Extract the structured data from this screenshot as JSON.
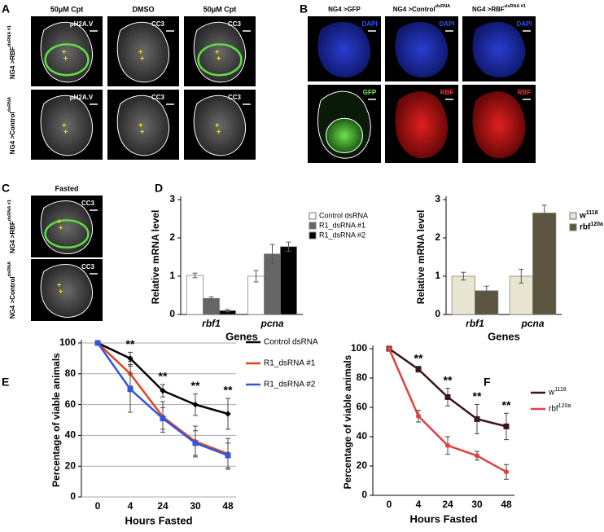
{
  "letters": [
    "A",
    "B",
    "C",
    "D",
    "E",
    "F"
  ],
  "panel_a": {
    "columns": [
      "50μM Cpt",
      "DMSO",
      "50μM Cpt"
    ],
    "rows": [
      {
        "text": "NG4 >RBF",
        "sup": "dsRNA #1"
      },
      {
        "text": "NG4 >Control",
        "sup": "dsRNA"
      }
    ],
    "stains": [
      [
        "pH2A.V",
        "CC3",
        "CC3"
      ],
      [
        "pH2A.V",
        "CC3",
        "CC3"
      ]
    ]
  },
  "panel_b": {
    "columns": [
      {
        "text": "NG4 >GFP"
      },
      {
        "text": "NG4 >Control",
        "sup": "dsRNA"
      },
      {
        "text": "NG4 >RBF",
        "sup": "dsRNA #1"
      }
    ],
    "stains": [
      [
        "DAPI",
        "DAPI",
        "DAPI"
      ],
      [
        "GFP",
        "RBF",
        "RBF"
      ]
    ]
  },
  "panel_c": {
    "title": "Fasted",
    "rows": [
      {
        "text": "NG4 >RBF",
        "sup": "dsRNA #1"
      },
      {
        "text": "NG4 >Control",
        "sup": "dsRNA"
      }
    ],
    "stains": [
      "CC3",
      "CC3"
    ]
  },
  "chart_data": [
    {
      "type": "bar",
      "ylabel": "Relative mRNA level",
      "xlabel": "Genes",
      "categories": [
        "rbf1",
        "pcna"
      ],
      "ylim": [
        0,
        3
      ],
      "yticks": [
        0,
        1,
        2,
        3
      ],
      "legend": "right",
      "series": [
        {
          "name": "Control dsRNA",
          "color": "#ffffff",
          "values": [
            1.02,
            1.0
          ],
          "errors": [
            0.06,
            0.15
          ]
        },
        {
          "name": "R1_dsRNA #1",
          "color": "#666666",
          "values": [
            0.42,
            1.58
          ],
          "errors": [
            0.04,
            0.25
          ]
        },
        {
          "name": "R1_dsRNA #2",
          "color": "#000000",
          "values": [
            0.1,
            1.77
          ],
          "errors": [
            0.03,
            0.12
          ]
        }
      ]
    },
    {
      "type": "bar",
      "ylabel": "Relative mRNA level",
      "xlabel": "Genes",
      "categories": [
        "rbf1",
        "pcna"
      ],
      "ylim": [
        0,
        3
      ],
      "yticks": [
        0,
        1,
        2,
        3
      ],
      "legend": "right",
      "series": [
        {
          "name": "w",
          "name_sup": "1118",
          "color": "#e8e6d2",
          "values": [
            1.0,
            1.0
          ],
          "errors": [
            0.1,
            0.18
          ]
        },
        {
          "name": "rbf",
          "name_sup": "120a",
          "color": "#5c5640",
          "values": [
            0.62,
            2.65
          ],
          "errors": [
            0.12,
            0.2
          ]
        }
      ]
    },
    {
      "type": "line",
      "ylabel": "Percentage of viable animals",
      "xlabel": "Hours Fasted",
      "categories": [
        "0",
        "4",
        "24",
        "30",
        "48"
      ],
      "ylim": [
        0,
        100
      ],
      "yticks": [
        0,
        20,
        40,
        60,
        80,
        100
      ],
      "grid": true,
      "legend": "right",
      "series": [
        {
          "name": "Control dsRNA",
          "color": "#000000",
          "marker": "diamond",
          "values": [
            100,
            90,
            69,
            60,
            54
          ],
          "errors": [
            0,
            4,
            4,
            7,
            10
          ]
        },
        {
          "name": "R1_dsRNA #1",
          "color": "#e0441c",
          "marker": "diamond",
          "values": [
            100,
            80,
            52,
            36,
            28
          ],
          "errors": [
            0,
            8,
            10,
            10,
            10
          ]
        },
        {
          "name": "R1_dsRNA #2",
          "color": "#3355e0",
          "marker": "square",
          "values": [
            100,
            70,
            51,
            35,
            27
          ],
          "errors": [
            0,
            15,
            7,
            8,
            8
          ]
        }
      ],
      "annotations": [
        {
          "x": "4",
          "text": "**"
        },
        {
          "x": "24",
          "text": "**"
        },
        {
          "x": "30",
          "text": "**"
        },
        {
          "x": "48",
          "text": "**"
        }
      ]
    },
    {
      "type": "line",
      "ylabel": "Percentage of viable animals",
      "xlabel": "Hours Fasted",
      "categories": [
        "0",
        "4",
        "24",
        "30",
        "48"
      ],
      "ylim": [
        0,
        100
      ],
      "yticks": [
        0,
        20,
        40,
        60,
        80,
        100
      ],
      "grid": false,
      "legend": "right",
      "series": [
        {
          "name": "w",
          "name_sup": "1118",
          "color": "#3a1616",
          "marker": "square",
          "values": [
            100,
            86,
            67,
            52,
            47
          ],
          "errors": [
            0,
            2,
            6,
            10,
            9
          ]
        },
        {
          "name": "rbf",
          "name_sup": "120a",
          "color": "#e04040",
          "marker": "circle",
          "values": [
            100,
            54,
            34,
            27,
            16
          ],
          "errors": [
            0,
            4,
            6,
            3,
            5
          ]
        }
      ],
      "annotations": [
        {
          "x": "4",
          "text": "**"
        },
        {
          "x": "24",
          "text": "**"
        },
        {
          "x": "30",
          "text": "**"
        },
        {
          "x": "48",
          "text": "**"
        }
      ]
    }
  ]
}
